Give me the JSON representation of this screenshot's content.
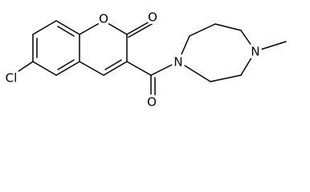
{
  "atom_labels": {
    "chlorine": "Cl",
    "ring_oxygen": "O",
    "lactone_carbonyl_oxygen": "O",
    "amide_carbonyl_oxygen": "O",
    "amide_nitrogen": "N",
    "methyl_nitrogen": "N"
  }
}
